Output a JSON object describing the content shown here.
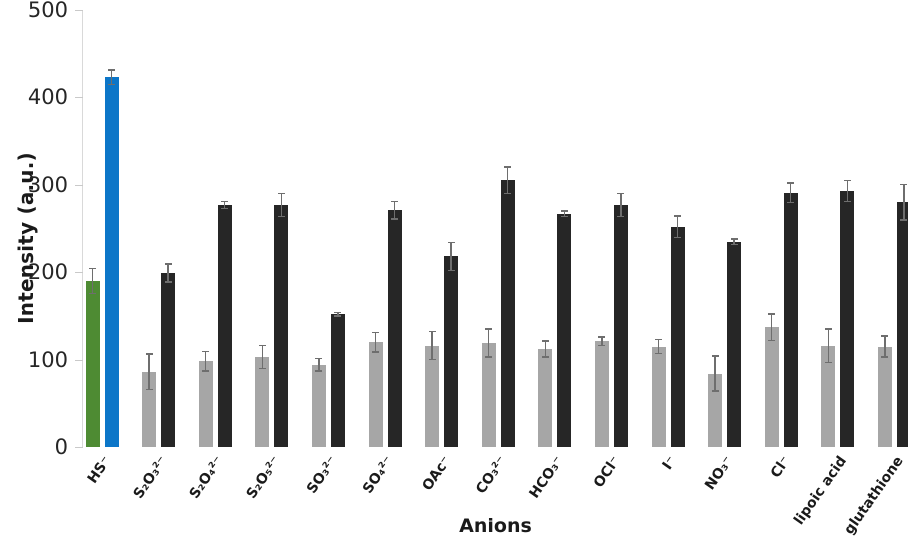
{
  "colors": {
    "background": "#ffffff",
    "axis_line": "#d9d9d9",
    "tick_mark": "#c9c9c9",
    "tick_text": "#262626",
    "label_text": "#1a1a1a",
    "error_bar": "#6e6e6e",
    "series1_first": "#4e8b33",
    "series1_rest": "#a6a6a6",
    "series2_first": "#0c76c8",
    "series2_rest": "#262626"
  },
  "chart_data": {
    "type": "bar",
    "title": "",
    "xlabel": "Anions",
    "ylabel": "Intensity (a.u.)",
    "ylim": [
      0,
      500
    ],
    "yticks": [
      0,
      100,
      200,
      300,
      400,
      500
    ],
    "grid": false,
    "legend": "none",
    "categories": [
      "HS⁻",
      "S₂O₃²⁻",
      "S₂O₄²⁻",
      "S₂O₅²⁻",
      "SO₃²⁻",
      "SO₄²⁻",
      "OAc⁻",
      "CO₃²⁻",
      "HCO₃⁻",
      "OCl⁻",
      "I⁻",
      "NO₃⁻",
      "Cl⁻",
      "lipoic acid",
      "glutathione"
    ],
    "series": [
      {
        "name": "bar-left",
        "values": [
          190,
          86,
          98,
          103,
          94,
          120,
          116,
          119,
          112,
          121,
          115,
          84,
          137,
          116,
          115
        ],
        "errors": [
          15,
          21,
          12,
          14,
          8,
          12,
          17,
          17,
          10,
          6,
          9,
          21,
          16,
          20,
          13
        ]
      },
      {
        "name": "bar-right",
        "values": [
          423,
          199,
          277,
          277,
          152,
          271,
          218,
          305,
          267,
          277,
          252,
          235,
          291,
          293,
          280
        ],
        "errors": [
          9,
          11,
          5,
          14,
          3,
          11,
          17,
          16,
          4,
          14,
          13,
          4,
          12,
          13,
          21
        ]
      }
    ]
  }
}
